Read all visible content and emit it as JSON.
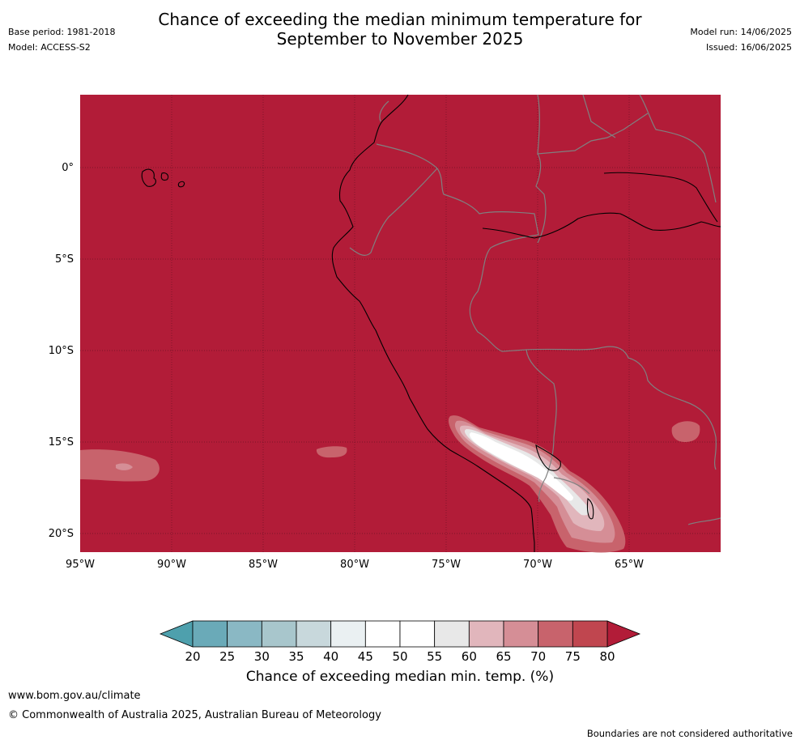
{
  "title": {
    "line1": "Chance of exceeding the median minimum temperature for",
    "line2": "September to November 2025"
  },
  "meta_left": {
    "base_period": "Base period: 1981-2018",
    "model": "Model: ACCESS-S2"
  },
  "meta_right": {
    "model_run": "Model run: 14/06/2025",
    "issued": "Issued: 16/06/2025"
  },
  "map": {
    "region": "Western South America and eastern Pacific",
    "background_class": ">80",
    "lat_labels": [
      "0°",
      "5°S",
      "10°S",
      "15°S",
      "20°S"
    ],
    "lon_labels": [
      "95°W",
      "90°W",
      "85°W",
      "80°W",
      "75°W",
      "70°W",
      "65°W"
    ],
    "colors": {
      "high": "#b21c38",
      "band_75_80": "#c0464f",
      "band_70_75": "#c8636c",
      "band_65_70": "#d58e96",
      "band_60_65": "#e1b6bc",
      "band_55_60": "#e8e8e8",
      "band_50_55": "#ffffff",
      "grid": "#5a1020",
      "border": "#808080",
      "coast": "#000000"
    }
  },
  "colorbar": {
    "tick_labels": [
      "20",
      "25",
      "30",
      "35",
      "40",
      "45",
      "50",
      "55",
      "60",
      "65",
      "70",
      "75",
      "80"
    ],
    "colors": [
      "#6aaab8",
      "#8ab8c4",
      "#a8c6cc",
      "#c8d8dc",
      "#eaf0f2",
      "#ffffff",
      "#ffffff",
      "#e8e8e8",
      "#e1b6bc",
      "#d58e96",
      "#c8636c",
      "#c0464f"
    ],
    "under_color": "#4ea0ad",
    "over_color": "#b21c38",
    "title": "Chance of exceeding median min. temp. (%)"
  },
  "footer": {
    "url": "www.bom.gov.au/climate",
    "copyright": "© Commonwealth of Australia 2025, Australian Bureau of Meteorology",
    "disclaimer": "Boundaries are not considered authoritative"
  }
}
